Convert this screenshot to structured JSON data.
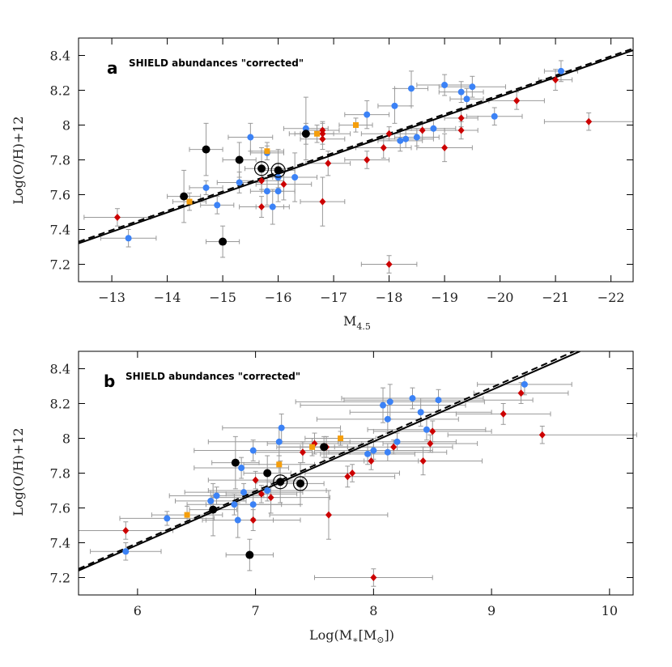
{
  "chart_data": [
    {
      "type": "scatter",
      "panel_letter": "a",
      "title": "SHIELD abundances \"corrected\"",
      "xlabel": "M",
      "xlabel_sub": "4.5",
      "ylabel": "Log(O/H)+12",
      "xlim": [
        -12.4,
        -22.4
      ],
      "ylim": [
        7.1,
        8.5
      ],
      "xticks": [
        -13,
        -14,
        -15,
        -16,
        -17,
        -18,
        -19,
        -20,
        -21,
        -22
      ],
      "xtick_labels": [
        "−13",
        "−14",
        "−15",
        "−16",
        "−17",
        "−18",
        "−19",
        "−20",
        "−21",
        "−22"
      ],
      "yticks": [
        7.2,
        7.4,
        7.6,
        7.8,
        8.0,
        8.2,
        8.4
      ],
      "ytick_labels": [
        "7.2",
        "7.4",
        "7.6",
        "7.8",
        "8",
        "8.2",
        "8.4"
      ],
      "fit_solid": [
        [
          -12.4,
          7.32
        ],
        [
          -22.4,
          8.43
        ]
      ],
      "fit_dashed": [
        [
          -12.4,
          7.33
        ],
        [
          -22.4,
          8.44
        ]
      ],
      "series": [
        {
          "name": "blue",
          "color": "#3b82f6",
          "marker": "circle",
          "points": [
            [
              -13.3,
              7.35,
              0.5,
              0.05
            ],
            [
              -14.7,
              7.64,
              0.3,
              0.04
            ],
            [
              -14.9,
              7.54,
              0.3,
              0.05
            ],
            [
              -15.3,
              7.67,
              0.4,
              0.06
            ],
            [
              -15.5,
              7.93,
              0.4,
              0.08
            ],
            [
              -15.8,
              7.62,
              0.3,
              0.08
            ],
            [
              -15.9,
              7.53,
              0.3,
              0.1
            ],
            [
              -16.0,
              7.62,
              0.3,
              0.06
            ],
            [
              -16.0,
              7.7,
              0.3,
              0.06
            ],
            [
              -15.8,
              7.84,
              0.3,
              0.04
            ],
            [
              -16.3,
              7.7,
              0.4,
              0.14
            ],
            [
              -16.5,
              7.98,
              0.4,
              0.18
            ],
            [
              -17.6,
              8.06,
              0.4,
              0.08
            ],
            [
              -18.1,
              8.11,
              0.3,
              0.1
            ],
            [
              -18.2,
              7.91,
              0.4,
              0.06
            ],
            [
              -18.3,
              7.92,
              0.5,
              0.05
            ],
            [
              -18.4,
              8.21,
              0.3,
              0.1
            ],
            [
              -18.5,
              7.93,
              0.4,
              0.05
            ],
            [
              -18.8,
              7.98,
              0.4,
              0.05
            ],
            [
              -19.0,
              8.23,
              0.5,
              0.06
            ],
            [
              -19.3,
              8.19,
              0.4,
              0.06
            ],
            [
              -19.4,
              8.15,
              0.3,
              0.06
            ],
            [
              -19.5,
              8.22,
              0.6,
              0.06
            ],
            [
              -19.9,
              8.05,
              0.5,
              0.05
            ],
            [
              -21.1,
              8.31,
              0.3,
              0.06
            ]
          ]
        },
        {
          "name": "red",
          "color": "#cc0000",
          "marker": "diamond",
          "points": [
            [
              -13.1,
              7.47,
              0.6,
              0.05
            ],
            [
              -15.7,
              7.53,
              0.4,
              0.06
            ],
            [
              -15.7,
              7.68,
              0.4,
              0.05
            ],
            [
              -16.1,
              7.66,
              0.5,
              0.09
            ],
            [
              -16.8,
              7.92,
              0.4,
              0.06
            ],
            [
              -16.8,
              7.95,
              0.5,
              0.06
            ],
            [
              -16.8,
              7.97,
              0.3,
              0.05
            ],
            [
              -16.8,
              7.56,
              0.4,
              0.14
            ],
            [
              -16.9,
              7.78,
              0.4,
              0.07
            ],
            [
              -17.6,
              7.8,
              0.4,
              0.05
            ],
            [
              -17.9,
              7.87,
              0.5,
              0.06
            ],
            [
              -18.0,
              7.2,
              0.5,
              0.05
            ],
            [
              -18.0,
              7.95,
              0.5,
              0.04
            ],
            [
              -18.6,
              7.97,
              0.4,
              0.05
            ],
            [
              -19.0,
              7.87,
              0.5,
              0.08
            ],
            [
              -19.3,
              7.97,
              0.3,
              0.05
            ],
            [
              -19.3,
              8.04,
              0.3,
              0.05
            ],
            [
              -20.3,
              8.14,
              0.5,
              0.05
            ],
            [
              -21.0,
              8.26,
              0.3,
              0.06
            ],
            [
              -21.6,
              8.02,
              0.8,
              0.05
            ]
          ]
        },
        {
          "name": "orange",
          "color": "#f59e0b",
          "marker": "square",
          "points": [
            [
              -14.4,
              7.56,
              0.3,
              0.05
            ],
            [
              -15.8,
              7.85,
              0.3,
              0.05
            ],
            [
              -16.7,
              7.95,
              0.3,
              0.05
            ],
            [
              -17.4,
              8.0,
              0.3,
              0.04
            ]
          ]
        },
        {
          "name": "black",
          "color": "#000000",
          "marker": "circle-large",
          "points": [
            [
              -14.3,
              7.59,
              0.3,
              0.15
            ],
            [
              -14.7,
              7.86,
              0.3,
              0.15
            ],
            [
              -15.0,
              7.33,
              0.3,
              0.09
            ],
            [
              -15.3,
              7.8,
              0.3,
              0.1
            ],
            [
              -16.5,
              7.95,
              0.3,
              0.06
            ],
            [
              -15.7,
              7.75,
              0.3,
              0.12
            ],
            [
              -16.0,
              7.74,
              0.3,
              0.12
            ]
          ]
        },
        {
          "name": "ringed",
          "color": "#000000",
          "marker": "ring",
          "points": [
            [
              -15.7,
              7.75,
              0,
              0
            ],
            [
              -16.0,
              7.74,
              0,
              0
            ]
          ]
        }
      ]
    },
    {
      "type": "scatter",
      "panel_letter": "b",
      "title": "SHIELD abundances \"corrected\"",
      "xlabel": "Log(M",
      "xlabel_star": "∗",
      "xlabel_mid": "[M",
      "xlabel_sun": "⊙",
      "xlabel_end": "])",
      "ylabel": "Log(O/H)+12",
      "xlim": [
        5.5,
        10.2
      ],
      "ylim": [
        7.1,
        8.5
      ],
      "xticks": [
        6,
        7,
        8,
        9,
        10
      ],
      "xtick_labels": [
        "6",
        "7",
        "8",
        "9",
        "10"
      ],
      "yticks": [
        7.2,
        7.4,
        7.6,
        7.8,
        8.0,
        8.2,
        8.4
      ],
      "ytick_labels": [
        "7.2",
        "7.4",
        "7.6",
        "7.8",
        "8",
        "8.2",
        "8.4"
      ],
      "fit_solid": [
        [
          5.5,
          7.24
        ],
        [
          9.75,
          8.5
        ]
      ],
      "fit_dashed": [
        [
          5.5,
          7.25
        ],
        [
          9.7,
          8.5
        ]
      ],
      "series": [
        {
          "name": "blue",
          "color": "#3b82f6",
          "marker": "circle",
          "points": [
            [
              5.9,
              7.35,
              0.3,
              0.05
            ],
            [
              6.25,
              7.54,
              0.4,
              0.04
            ],
            [
              6.62,
              7.64,
              0.3,
              0.06
            ],
            [
              6.67,
              7.67,
              0.4,
              0.05
            ],
            [
              6.82,
              7.62,
              0.4,
              0.06
            ],
            [
              6.85,
              7.53,
              0.3,
              0.1
            ],
            [
              6.88,
              7.83,
              0.4,
              0.06
            ],
            [
              6.9,
              7.69,
              0.5,
              0.05
            ],
            [
              6.98,
              7.93,
              0.5,
              0.06
            ],
            [
              6.98,
              7.62,
              0.4,
              0.08
            ],
            [
              7.1,
              7.7,
              0.5,
              0.06
            ],
            [
              7.2,
              7.98,
              0.6,
              0.08
            ],
            [
              7.22,
              8.06,
              0.5,
              0.08
            ],
            [
              7.95,
              7.91,
              0.4,
              0.06
            ],
            [
              8.0,
              7.93,
              0.5,
              0.05
            ],
            [
              8.08,
              8.19,
              0.7,
              0.1
            ],
            [
              8.12,
              8.11,
              0.6,
              0.08
            ],
            [
              8.12,
              7.92,
              0.5,
              0.05
            ],
            [
              8.14,
              8.21,
              0.8,
              0.1
            ],
            [
              8.2,
              7.98,
              0.5,
              0.05
            ],
            [
              8.33,
              8.23,
              0.6,
              0.06
            ],
            [
              8.4,
              8.15,
              0.6,
              0.08
            ],
            [
              8.45,
              8.05,
              0.5,
              0.06
            ],
            [
              8.55,
              8.22,
              0.8,
              0.06
            ],
            [
              9.28,
              8.31,
              0.4,
              0.06
            ]
          ]
        },
        {
          "name": "red",
          "color": "#cc0000",
          "marker": "diamond",
          "points": [
            [
              5.9,
              7.47,
              0.4,
              0.05
            ],
            [
              6.98,
              7.53,
              0.4,
              0.06
            ],
            [
              7.0,
              7.76,
              0.4,
              0.05
            ],
            [
              7.05,
              7.68,
              0.3,
              0.05
            ],
            [
              7.13,
              7.66,
              0.5,
              0.09
            ],
            [
              7.4,
              7.92,
              0.4,
              0.06
            ],
            [
              7.5,
              7.97,
              0.4,
              0.06
            ],
            [
              7.6,
              7.95,
              0.4,
              0.06
            ],
            [
              7.62,
              7.56,
              0.5,
              0.14
            ],
            [
              7.78,
              7.78,
              0.4,
              0.06
            ],
            [
              7.82,
              7.8,
              0.4,
              0.05
            ],
            [
              7.98,
              7.87,
              0.4,
              0.05
            ],
            [
              8.0,
              7.2,
              0.5,
              0.05
            ],
            [
              8.17,
              7.95,
              0.5,
              0.04
            ],
            [
              8.42,
              7.87,
              0.5,
              0.08
            ],
            [
              8.48,
              7.97,
              0.4,
              0.05
            ],
            [
              8.5,
              8.04,
              0.5,
              0.06
            ],
            [
              9.1,
              8.14,
              0.4,
              0.06
            ],
            [
              9.25,
              8.26,
              0.4,
              0.06
            ],
            [
              9.43,
              8.02,
              0.8,
              0.05
            ]
          ]
        },
        {
          "name": "orange",
          "color": "#f59e0b",
          "marker": "square",
          "points": [
            [
              6.42,
              7.56,
              0.3,
              0.05
            ],
            [
              7.2,
              7.85,
              0.3,
              0.05
            ],
            [
              7.48,
              7.95,
              0.3,
              0.05
            ],
            [
              7.72,
              8.0,
              0.3,
              0.04
            ]
          ]
        },
        {
          "name": "black",
          "color": "#000000",
          "marker": "circle-large",
          "points": [
            [
              6.64,
              7.59,
              0.2,
              0.15
            ],
            [
              6.83,
              7.86,
              0.2,
              0.15
            ],
            [
              6.95,
              7.33,
              0.2,
              0.09
            ],
            [
              7.1,
              7.8,
              0.2,
              0.1
            ],
            [
              7.58,
              7.95,
              0.2,
              0.06
            ],
            [
              7.21,
              7.75,
              0.2,
              0.12
            ],
            [
              7.38,
              7.74,
              0.2,
              0.12
            ]
          ]
        },
        {
          "name": "ringed",
          "color": "#000000",
          "marker": "ring",
          "points": [
            [
              7.21,
              7.75,
              0,
              0
            ],
            [
              7.38,
              7.74,
              0,
              0
            ]
          ]
        }
      ]
    }
  ]
}
